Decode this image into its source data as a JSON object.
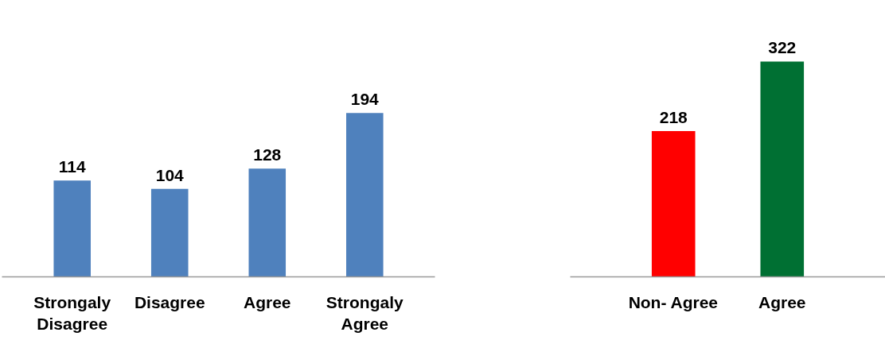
{
  "chart_data": [
    {
      "type": "bar",
      "categories": [
        "Strongaly Disagree",
        "Disagree",
        "Agree",
        "Strongaly Agree"
      ],
      "values": [
        114,
        104,
        128,
        194
      ],
      "color": "#4f81bd",
      "data_labels": true
    },
    {
      "type": "bar",
      "categories": [
        "Non- Agree",
        "Agree"
      ],
      "values": [
        218,
        322
      ],
      "colors": [
        "#ff0000",
        "#007033"
      ],
      "data_labels": true
    }
  ]
}
